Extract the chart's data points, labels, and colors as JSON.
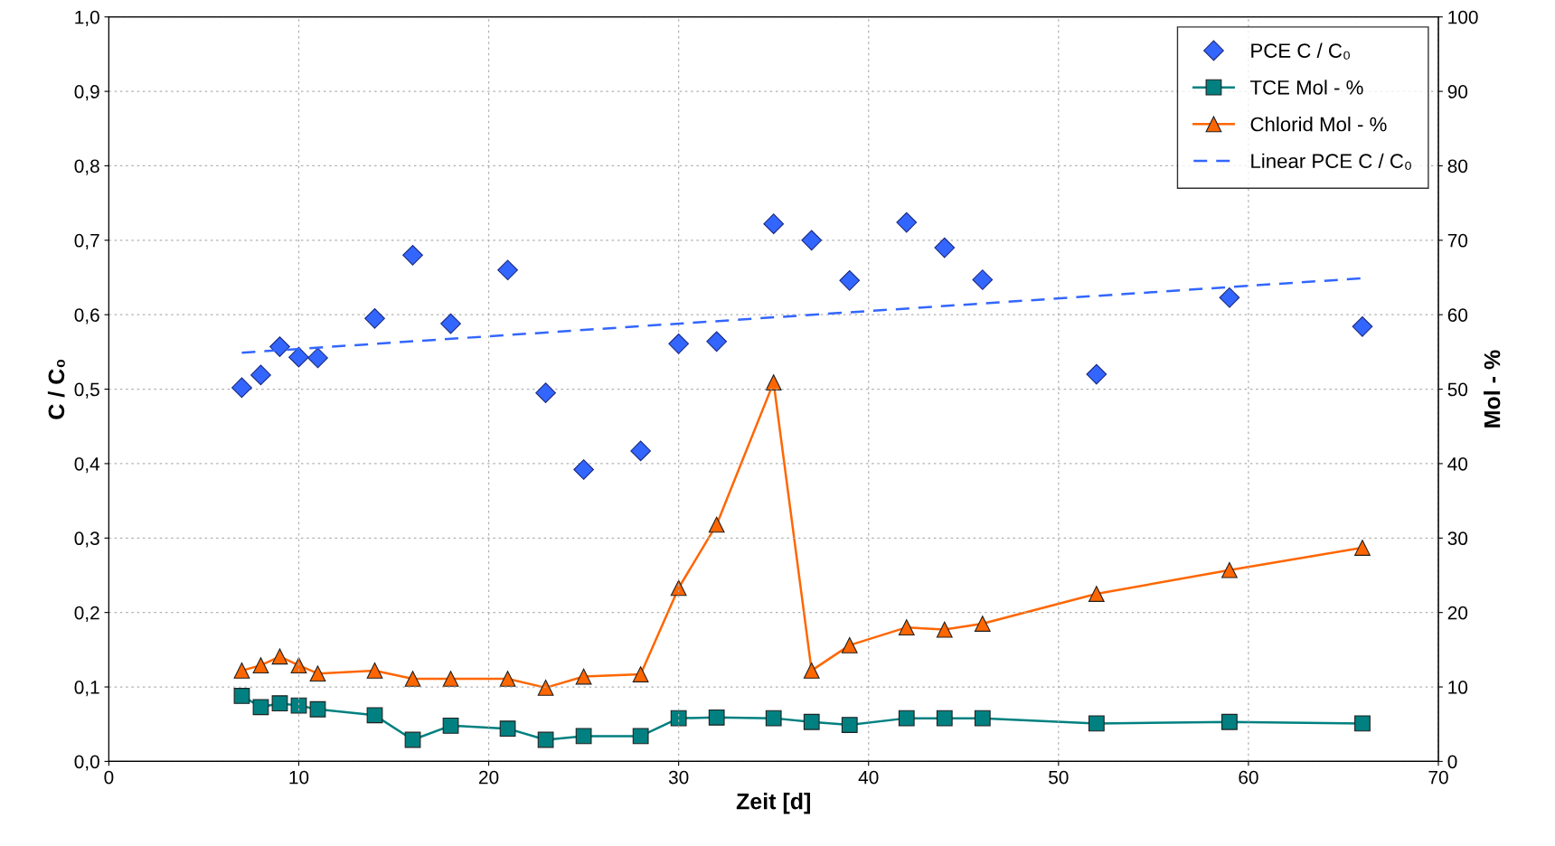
{
  "chart_data": {
    "type": "line",
    "xlabel": "Zeit [d]",
    "ylabel": "C / C₀",
    "y2label": "Mol - %",
    "xlim": [
      0,
      70
    ],
    "xticks": [
      0,
      10,
      20,
      30,
      40,
      50,
      60,
      70
    ],
    "ylim": [
      0,
      1
    ],
    "yticks": [
      {
        "value": 0,
        "label": "0,0"
      },
      {
        "value": 0.1,
        "label": "0,1"
      },
      {
        "value": 0.2,
        "label": "0,2"
      },
      {
        "value": 0.3,
        "label": "0,3"
      },
      {
        "value": 0.4,
        "label": "0,4"
      },
      {
        "value": 0.5,
        "label": "0,5"
      },
      {
        "value": 0.6,
        "label": "0,6"
      },
      {
        "value": 0.7,
        "label": "0,7"
      },
      {
        "value": 0.8,
        "label": "0,8"
      },
      {
        "value": 0.9,
        "label": "0,9"
      },
      {
        "value": 1,
        "label": "1,0"
      }
    ],
    "y2lim": [
      0,
      100
    ],
    "y2ticks": [
      0,
      10,
      20,
      30,
      40,
      50,
      60,
      70,
      80,
      90,
      100
    ],
    "grid": true,
    "legend": "top right",
    "series": [
      {
        "name": "PCE C / C₀",
        "type": "scatter",
        "marker": "diamond",
        "color": "#3366ff",
        "x": [
          7,
          8,
          9,
          10,
          11,
          14,
          16,
          18,
          21,
          23,
          25,
          28,
          30,
          32,
          35,
          37,
          39,
          42,
          44,
          46,
          52,
          59,
          66
        ],
        "values": [
          0.502,
          0.519,
          0.557,
          0.543,
          0.542,
          0.595,
          0.68,
          0.588,
          0.66,
          0.495,
          0.392,
          0.417,
          0.561,
          0.564,
          0.722,
          0.7,
          0.646,
          0.724,
          0.69,
          0.647,
          0.52,
          0.623,
          0.584
        ]
      },
      {
        "name": "TCE Mol - %",
        "axis": "y2",
        "marker": "square",
        "line_style": "solid",
        "color": "#008080",
        "x": [
          7,
          8,
          9,
          10,
          11,
          14,
          16,
          18,
          21,
          23,
          25,
          28,
          30,
          32,
          35,
          37,
          39,
          42,
          44,
          46,
          52,
          59,
          66
        ],
        "values": [
          8.8,
          7.3,
          7.8,
          7.5,
          7.0,
          6.2,
          2.9,
          4.8,
          4.4,
          2.9,
          3.4,
          3.4,
          5.8,
          5.9,
          5.8,
          5.3,
          4.9,
          5.8,
          5.8,
          5.8,
          5.1,
          5.3,
          5.1
        ]
      },
      {
        "name": "Chlorid Mol - %",
        "axis": "y2",
        "marker": "triangle",
        "line_style": "solid",
        "color": "#ff6600",
        "x": [
          7,
          8,
          9,
          10,
          11,
          14,
          16,
          18,
          21,
          23,
          25,
          28,
          30,
          32,
          35,
          37,
          39,
          42,
          44,
          46,
          52,
          59,
          66
        ],
        "values": [
          12.2,
          12.9,
          14.1,
          12.9,
          11.8,
          12.2,
          11.1,
          11.1,
          11.1,
          9.9,
          11.4,
          11.7,
          23.3,
          31.8,
          50.9,
          12.2,
          15.6,
          18.0,
          17.7,
          18.5,
          22.5,
          25.7,
          28.7
        ]
      },
      {
        "name": "Linear PCE C / C₀",
        "marker": "none",
        "line_style": "dashed",
        "color": "#3366ff",
        "x": [
          7,
          66
        ],
        "values": [
          0.549,
          0.649
        ]
      }
    ]
  }
}
